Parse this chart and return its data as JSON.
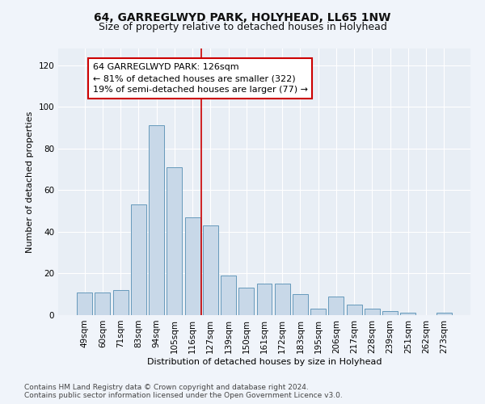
{
  "title": "64, GARREGLWYD PARK, HOLYHEAD, LL65 1NW",
  "subtitle": "Size of property relative to detached houses in Holyhead",
  "xlabel": "Distribution of detached houses by size in Holyhead",
  "ylabel": "Number of detached properties",
  "bar_labels": [
    "49sqm",
    "60sqm",
    "71sqm",
    "83sqm",
    "94sqm",
    "105sqm",
    "116sqm",
    "127sqm",
    "139sqm",
    "150sqm",
    "161sqm",
    "172sqm",
    "183sqm",
    "195sqm",
    "206sqm",
    "217sqm",
    "228sqm",
    "239sqm",
    "251sqm",
    "262sqm",
    "273sqm"
  ],
  "bar_values": [
    11,
    11,
    12,
    53,
    91,
    71,
    47,
    43,
    19,
    13,
    15,
    15,
    10,
    3,
    9,
    5,
    3,
    2,
    1,
    0,
    1
  ],
  "annotation_line1": "64 GARREGLWYD PARK: 126sqm",
  "annotation_line2": "← 81% of detached houses are smaller (322)",
  "annotation_line3": "19% of semi-detached houses are larger (77) →",
  "bar_color": "#c8d8e8",
  "bar_edge_color": "#6699bb",
  "vline_color": "#cc0000",
  "box_edge_color": "#cc0000",
  "box_face_color": "#ffffff",
  "footer1": "Contains HM Land Registry data © Crown copyright and database right 2024.",
  "footer2": "Contains public sector information licensed under the Open Government Licence v3.0.",
  "ylim": [
    0,
    128
  ],
  "yticks": [
    0,
    20,
    40,
    60,
    80,
    100,
    120
  ],
  "background_color": "#e8eef5",
  "fig_bg_color": "#f0f4fa",
  "title_fontsize": 10,
  "subtitle_fontsize": 9,
  "axis_label_fontsize": 8,
  "tick_fontsize": 7.5,
  "annotation_fontsize": 8,
  "footer_fontsize": 6.5,
  "vline_x": 6.5
}
